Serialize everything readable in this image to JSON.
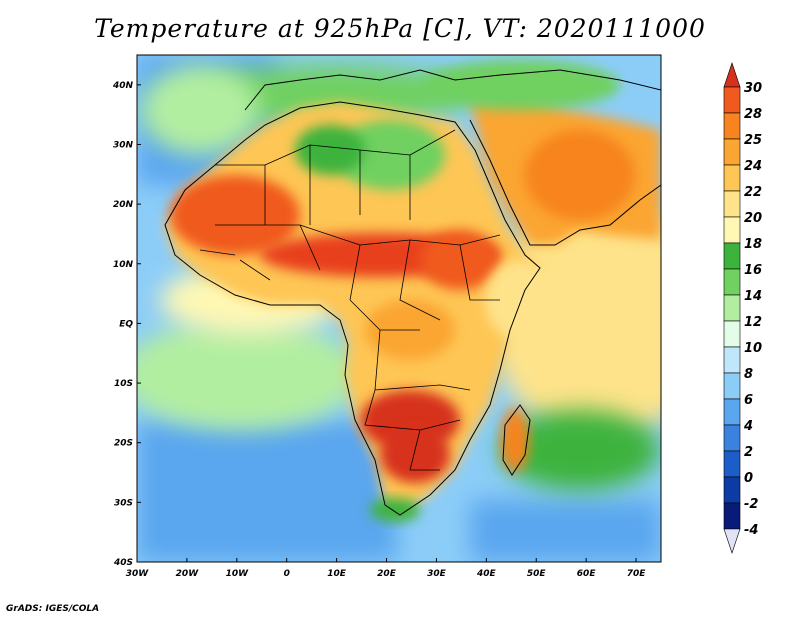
{
  "title": "Temperature at 925hPa [C], VT: 2020111000",
  "credit": "GrADS: IGES/COLA",
  "map": {
    "type": "heatmap",
    "variable": "Temperature at 925hPa",
    "units": "C",
    "lon_range": [
      -30,
      75
    ],
    "lat_range": [
      -40,
      45
    ],
    "x_ticks": [
      "30W",
      "20W",
      "10W",
      "0",
      "10E",
      "20E",
      "30E",
      "40E",
      "50E",
      "60E",
      "70E"
    ],
    "y_ticks": [
      "40N",
      "30N",
      "20N",
      "10N",
      "EQ",
      "10S",
      "20S",
      "30S",
      "40S"
    ]
  },
  "colorbar": {
    "levels": [
      "30",
      "28",
      "25",
      "24",
      "22",
      "20",
      "18",
      "16",
      "14",
      "12",
      "10",
      "8",
      "6",
      "4",
      "2",
      "0",
      "-2",
      "-4"
    ],
    "colors": [
      "#d7301f",
      "#f05a1e",
      "#f7841f",
      "#fba533",
      "#fec654",
      "#fee38a",
      "#fef8b4",
      "#3cb33c",
      "#70d060",
      "#b2eea0",
      "#e4fde8",
      "#bfe6fb",
      "#8ccdf8",
      "#5aa6ef",
      "#3b82e0",
      "#1c5ec9",
      "#0c3ba6",
      "#091b78"
    ]
  },
  "colors": {
    "ocean_cold": "#5aa6ef",
    "ocean_cool": "#8ccdf8",
    "land_green": "#70d060",
    "land_hot": "#e8401e",
    "boundary": "#000000"
  }
}
